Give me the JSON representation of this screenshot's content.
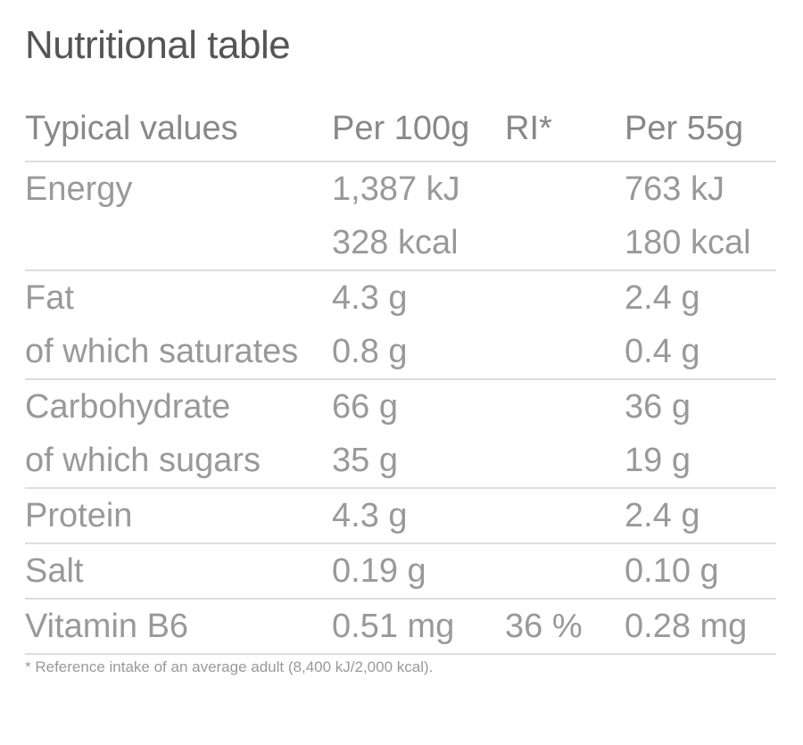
{
  "title": "Nutritional table",
  "headers": [
    "Typical values",
    "Per 100g",
    "RI*",
    "Per 55g"
  ],
  "rows": [
    {
      "label": "Energy",
      "per100": "1,387 kJ",
      "ri": "",
      "per55": "763 kJ",
      "sep": false
    },
    {
      "label": "",
      "per100": "328 kcal",
      "ri": "",
      "per55": "180 kcal",
      "sep": true
    },
    {
      "label": "Fat",
      "per100": "4.3 g",
      "ri": "",
      "per55": "2.4 g",
      "sep": false
    },
    {
      "label": "of which saturates",
      "per100": "0.8 g",
      "ri": "",
      "per55": "0.4 g",
      "sep": true
    },
    {
      "label": "Carbohydrate",
      "per100": "66 g",
      "ri": "",
      "per55": "36 g",
      "sep": false
    },
    {
      "label": "of which sugars",
      "per100": "35 g",
      "ri": "",
      "per55": "19 g",
      "sep": true
    },
    {
      "label": "Protein",
      "per100": "4.3 g",
      "ri": "",
      "per55": "2.4 g",
      "sep": true
    },
    {
      "label": "Salt",
      "per100": "0.19 g",
      "ri": "",
      "per55": "0.10 g",
      "sep": true
    },
    {
      "label": "Vitamin B6",
      "per100": "0.51 mg",
      "ri": "36 %",
      "per55": "0.28 mg",
      "sep": true
    }
  ],
  "footnote": "* Reference intake of an average adult (8,400 kJ/2,000 kcal)."
}
